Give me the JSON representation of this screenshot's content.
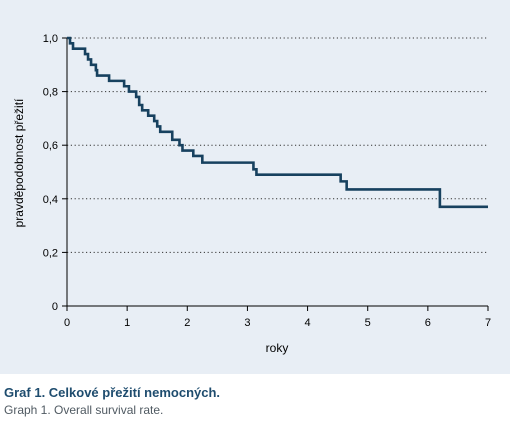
{
  "chart_data": {
    "type": "line",
    "step": true,
    "xlabel": "roky",
    "ylabel": "pravděpodobnost přežití",
    "xlim": [
      0,
      7
    ],
    "ylim": [
      0,
      1
    ],
    "x_ticks": [
      0,
      1,
      2,
      3,
      4,
      5,
      6,
      7
    ],
    "y_ticks": [
      0,
      0.2,
      0.4,
      0.6,
      0.8,
      1.0
    ],
    "x_tick_labels": [
      "0",
      "1",
      "2",
      "3",
      "4",
      "5",
      "6",
      "7"
    ],
    "y_tick_labels": [
      "0",
      "0,2",
      "0,4",
      "0,6",
      "0,8",
      "1,0"
    ],
    "grid": "horizontal-dotted",
    "colors": {
      "line": "#17415f",
      "panel": "#e8eef5",
      "grid": "#333333"
    },
    "series": [
      {
        "x": [
          0,
          0.05,
          0.1,
          0.3,
          0.35,
          0.4,
          0.48,
          0.5,
          0.7,
          0.95,
          1.03,
          1.15,
          1.2,
          1.25,
          1.35,
          1.45,
          1.5,
          1.55,
          1.75,
          1.87,
          1.92,
          2.1,
          2.25,
          2.5,
          3.0,
          3.1,
          3.15,
          4.0,
          4.55,
          4.65,
          6.0,
          6.2,
          7.0
        ],
        "y": [
          1.0,
          0.98,
          0.96,
          0.94,
          0.92,
          0.9,
          0.88,
          0.86,
          0.84,
          0.82,
          0.8,
          0.78,
          0.75,
          0.73,
          0.71,
          0.69,
          0.67,
          0.65,
          0.62,
          0.6,
          0.58,
          0.56,
          0.535,
          0.535,
          0.535,
          0.51,
          0.49,
          0.49,
          0.465,
          0.435,
          0.435,
          0.37,
          0.37
        ]
      }
    ]
  },
  "caption": {
    "title": "Graf 1. Celkové přežití nemocných.",
    "subtitle": "Graph 1. Overall survival rate."
  }
}
